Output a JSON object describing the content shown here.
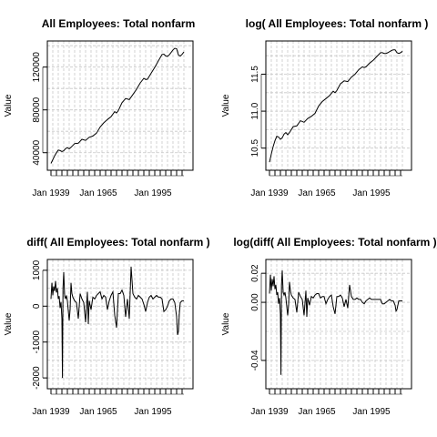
{
  "chart_data": [
    {
      "type": "line",
      "title": "All Employees: Total nonfarm",
      "ylabel": "Value",
      "xlim": [
        1939,
        2015
      ],
      "ylim": [
        27000,
        141000
      ],
      "x_ticks": [
        {
          "value": 1939,
          "label": "Jan 1939"
        },
        {
          "value": 1965,
          "label": "Jan 1965"
        },
        {
          "value": 1995,
          "label": "Jan 1995"
        }
      ],
      "y_ticks": [
        {
          "value": 40000,
          "label": "40000"
        },
        {
          "value": 80000,
          "label": "80000"
        },
        {
          "value": 120000,
          "label": "120000"
        }
      ],
      "grid": true,
      "series": [
        {
          "x": [
            1939,
            1940,
            1941,
            1942,
            1943,
            1944,
            1945,
            1946,
            1947,
            1948,
            1949,
            1950,
            1952,
            1954,
            1956,
            1958,
            1960,
            1962,
            1964,
            1966,
            1968,
            1970,
            1972,
            1974,
            1975,
            1976,
            1978,
            1980,
            1982,
            1984,
            1986,
            1988,
            1990,
            1991,
            1992,
            1994,
            1996,
            1998,
            2000,
            2001,
            2002,
            2003,
            2004,
            2006,
            2007,
            2008,
            2009,
            2010,
            2011,
            2012
          ],
          "values": [
            30000,
            33500,
            37000,
            40000,
            42500,
            42000,
            41000,
            41800,
            43800,
            44800,
            43600,
            45000,
            48500,
            48900,
            52500,
            51500,
            54400,
            55600,
            58300,
            64000,
            67900,
            71000,
            73700,
            78400,
            77100,
            79400,
            86700,
            90600,
            89600,
            94400,
            99300,
            105200,
            109500,
            108400,
            108700,
            114300,
            119700,
            125900,
            131800,
            132100,
            130400,
            130000,
            131500,
            136100,
            137600,
            137200,
            131300,
            130300,
            131900,
            134100
          ]
        }
      ]
    },
    {
      "type": "line",
      "title": "log( All Employees: Total nonfarm )",
      "ylabel": "Value",
      "xlim": [
        1939,
        2015
      ],
      "ylim": [
        10.25,
        11.9
      ],
      "x_ticks": [
        {
          "value": 1939,
          "label": "Jan 1939"
        },
        {
          "value": 1965,
          "label": "Jan 1965"
        },
        {
          "value": 1995,
          "label": "Jan 1995"
        }
      ],
      "y_ticks": [
        {
          "value": 10.5,
          "label": "10.5"
        },
        {
          "value": 11.0,
          "label": "11.0"
        },
        {
          "value": 11.5,
          "label": "11.5"
        }
      ],
      "grid": true,
      "series": [
        {
          "x": [
            1939,
            1940,
            1941,
            1942,
            1943,
            1944,
            1945,
            1946,
            1947,
            1948,
            1949,
            1950,
            1952,
            1954,
            1956,
            1958,
            1960,
            1962,
            1964,
            1966,
            1968,
            1970,
            1972,
            1974,
            1975,
            1976,
            1978,
            1980,
            1982,
            1984,
            1986,
            1988,
            1990,
            1991,
            1992,
            1994,
            1996,
            1998,
            2000,
            2001,
            2002,
            2003,
            2004,
            2006,
            2007,
            2008,
            2009,
            2010,
            2011,
            2012
          ],
          "values": [
            10.31,
            10.42,
            10.52,
            10.6,
            10.66,
            10.65,
            10.62,
            10.64,
            10.69,
            10.71,
            10.68,
            10.71,
            10.79,
            10.8,
            10.87,
            10.85,
            10.9,
            10.93,
            10.97,
            11.07,
            11.13,
            11.17,
            11.21,
            11.27,
            11.25,
            11.28,
            11.37,
            11.41,
            11.4,
            11.46,
            11.5,
            11.56,
            11.6,
            11.59,
            11.6,
            11.65,
            11.69,
            11.74,
            11.79,
            11.79,
            11.78,
            11.78,
            11.79,
            11.82,
            11.83,
            11.83,
            11.79,
            11.78,
            11.79,
            11.81
          ]
        }
      ]
    },
    {
      "type": "line",
      "title": "diff( All Employees: Total nonfarm )",
      "ylabel": "Value",
      "xlim": [
        1939,
        2015
      ],
      "ylim": [
        -2200,
        1200
      ],
      "x_ticks": [
        {
          "value": 1939,
          "label": "Jan 1939"
        },
        {
          "value": 1965,
          "label": "Jan 1965"
        },
        {
          "value": 1995,
          "label": "Jan 1995"
        }
      ],
      "y_ticks": [
        {
          "value": -2000,
          "label": "-2000"
        },
        {
          "value": -1000,
          "label": "-1000"
        },
        {
          "value": 0,
          "label": "0"
        },
        {
          "value": 1000,
          "label": "1000"
        }
      ],
      "grid": true,
      "series": [
        {
          "x": [
            1939,
            1939.5,
            1940,
            1940.5,
            1941,
            1941.5,
            1942,
            1942.5,
            1943,
            1943.5,
            1944,
            1944.5,
            1945,
            1945.3,
            1945.6,
            1946,
            1946.5,
            1947,
            1947.5,
            1948,
            1949,
            1949.5,
            1950,
            1950.5,
            1951,
            1952,
            1953,
            1954,
            1955,
            1956,
            1957,
            1958,
            1959,
            1959.5,
            1960,
            1961,
            1962,
            1963,
            1964,
            1965,
            1966,
            1967,
            1968,
            1969,
            1970,
            1971,
            1972,
            1973,
            1974,
            1975,
            1976,
            1977,
            1978,
            1979,
            1980,
            1981,
            1982,
            1983,
            1984,
            1985,
            1986,
            1987,
            1988,
            1989,
            1990,
            1991,
            1992,
            1993,
            1994,
            1995,
            1996,
            1997,
            1998,
            1999,
            2000,
            2001,
            2002,
            2003,
            2004,
            2005,
            2006,
            2007,
            2008,
            2008.5,
            2009,
            2009.5,
            2010,
            2011,
            2012
          ],
          "values": [
            200,
            650,
            300,
            550,
            420,
            700,
            380,
            500,
            200,
            280,
            -50,
            120,
            -350,
            -2000,
            500,
            950,
            300,
            200,
            300,
            150,
            -400,
            -100,
            650,
            350,
            250,
            150,
            100,
            -350,
            350,
            200,
            100,
            -450,
            400,
            -500,
            150,
            -100,
            250,
            200,
            300,
            350,
            400,
            200,
            300,
            250,
            -100,
            150,
            300,
            400,
            -250,
            -600,
            350,
            350,
            450,
            300,
            -300,
            200,
            -350,
            1100,
            350,
            250,
            200,
            300,
            250,
            200,
            50,
            -150,
            100,
            250,
            300,
            200,
            250,
            300,
            250,
            250,
            200,
            -150,
            -100,
            0,
            150,
            200,
            200,
            100,
            -300,
            -800,
            -700,
            -200,
            100,
            150,
            150
          ]
        }
      ]
    },
    {
      "type": "line",
      "title": "log(diff( All Employees: Total nonfarm ))",
      "ylabel": "Value",
      "xlim": [
        1939,
        2015
      ],
      "ylim": [
        -0.057,
        0.027
      ],
      "x_ticks": [
        {
          "value": 1939,
          "label": "Jan 1939"
        },
        {
          "value": 1965,
          "label": "Jan 1965"
        },
        {
          "value": 1995,
          "label": "Jan 1995"
        }
      ],
      "y_ticks": [
        {
          "value": -0.04,
          "label": "-0.04"
        },
        {
          "value": 0.0,
          "label": "0.00"
        },
        {
          "value": 0.02,
          "label": "0.02"
        }
      ],
      "grid": true,
      "series": [
        {
          "x": [
            1939,
            1939.5,
            1940,
            1940.5,
            1941,
            1941.5,
            1942,
            1942.5,
            1943,
            1943.5,
            1944,
            1944.5,
            1945,
            1945.3,
            1945.6,
            1946,
            1946.5,
            1947,
            1947.5,
            1948,
            1949,
            1949.5,
            1950,
            1950.5,
            1951,
            1952,
            1953,
            1954,
            1955,
            1956,
            1957,
            1958,
            1959,
            1959.5,
            1960,
            1961,
            1962,
            1963,
            1964,
            1965,
            1966,
            1967,
            1968,
            1969,
            1970,
            1971,
            1972,
            1973,
            1974,
            1975,
            1976,
            1977,
            1978,
            1979,
            1980,
            1981,
            1982,
            1983,
            1984,
            1985,
            1986,
            1987,
            1988,
            1989,
            1990,
            1991,
            1992,
            1993,
            1994,
            1995,
            1996,
            1997,
            1998,
            1999,
            2000,
            2001,
            2002,
            2003,
            2004,
            2005,
            2006,
            2007,
            2008,
            2008.5,
            2009,
            2009.5,
            2010,
            2011,
            2012
          ],
          "values": [
            0.006,
            0.019,
            0.008,
            0.016,
            0.011,
            0.018,
            0.009,
            0.012,
            0.005,
            0.007,
            -0.001,
            0.003,
            -0.008,
            -0.05,
            0.012,
            0.022,
            0.007,
            0.005,
            0.007,
            0.003,
            -0.009,
            -0.002,
            0.014,
            0.008,
            0.005,
            0.003,
            0.002,
            -0.007,
            0.007,
            0.004,
            0.002,
            -0.009,
            0.008,
            -0.01,
            0.003,
            -0.002,
            0.004,
            0.003,
            0.005,
            0.006,
            0.006,
            0.003,
            0.004,
            0.004,
            -0.001,
            0.002,
            0.004,
            0.005,
            -0.003,
            -0.008,
            0.004,
            0.004,
            0.005,
            0.003,
            -0.003,
            0.002,
            -0.004,
            0.012,
            0.004,
            0.002,
            0.002,
            0.003,
            0.002,
            0.002,
            0.0,
            -0.001,
            0.001,
            0.002,
            0.003,
            0.002,
            0.002,
            0.002,
            0.002,
            0.002,
            0.002,
            -0.001,
            -0.001,
            0.0,
            0.001,
            0.002,
            0.001,
            0.001,
            -0.002,
            -0.006,
            -0.005,
            -0.002,
            0.001,
            0.001,
            0.001
          ]
        }
      ]
    }
  ]
}
